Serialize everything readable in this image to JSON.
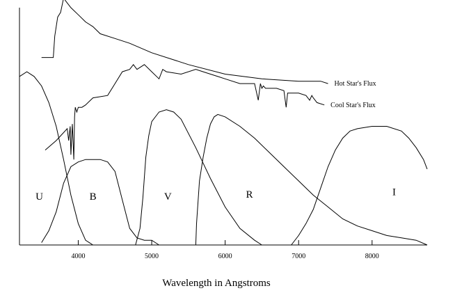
{
  "chart_data": {
    "type": "line",
    "title": "",
    "xlabel": "Wavelength in Angstroms",
    "ylabel": "",
    "xlim": [
      3200,
      8750
    ],
    "ylim": [
      0,
      1
    ],
    "grid": false,
    "x_ticks": [
      4000,
      5000,
      6000,
      7000,
      8000
    ],
    "series": [
      {
        "name": "Hot Star's Flux",
        "x": [
          3500,
          3660,
          3680,
          3720,
          3760,
          3800,
          3850,
          3900,
          4000,
          4100,
          4200,
          4300,
          4500,
          4700,
          5000,
          5500,
          6000,
          6500,
          7000,
          7300,
          7400
        ],
        "y": [
          0.79,
          0.79,
          0.88,
          0.96,
          0.98,
          1.04,
          1.02,
          1.0,
          0.97,
          0.94,
          0.92,
          0.89,
          0.87,
          0.85,
          0.81,
          0.76,
          0.72,
          0.7,
          0.69,
          0.69,
          0.68
        ]
      },
      {
        "name": "Cool Star's Flux",
        "x": [
          3550,
          3700,
          3850,
          3870,
          3890,
          3900,
          3920,
          3940,
          3950,
          3960,
          3980,
          4000,
          4050,
          4100,
          4200,
          4400,
          4500,
          4600,
          4700,
          4750,
          4800,
          4900,
          5000,
          5100,
          5150,
          5200,
          5400,
          5600,
          5700,
          5800,
          5900,
          6000,
          6200,
          6400,
          6450,
          6480,
          6500,
          6520,
          6550,
          6700,
          6800,
          6830,
          6850,
          7000,
          7100,
          7150,
          7180,
          7200,
          7250,
          7350
        ],
        "y": [
          0.4,
          0.44,
          0.49,
          0.44,
          0.5,
          0.38,
          0.51,
          0.36,
          0.54,
          0.58,
          0.56,
          0.58,
          0.58,
          0.59,
          0.62,
          0.63,
          0.68,
          0.73,
          0.74,
          0.76,
          0.74,
          0.76,
          0.73,
          0.7,
          0.74,
          0.73,
          0.72,
          0.74,
          0.73,
          0.72,
          0.71,
          0.7,
          0.68,
          0.68,
          0.61,
          0.68,
          0.66,
          0.67,
          0.66,
          0.66,
          0.65,
          0.58,
          0.64,
          0.64,
          0.63,
          0.61,
          0.63,
          0.62,
          0.6,
          0.59
        ]
      },
      {
        "name": "U",
        "x": [
          3200,
          3300,
          3400,
          3500,
          3600,
          3700,
          3800,
          3900,
          4000,
          4100,
          4200
        ],
        "y": [
          0.71,
          0.73,
          0.71,
          0.67,
          0.6,
          0.5,
          0.36,
          0.21,
          0.09,
          0.02,
          0.0
        ]
      },
      {
        "name": "B",
        "x": [
          3500,
          3600,
          3700,
          3800,
          3900,
          4000,
          4100,
          4200,
          4300,
          4400,
          4500,
          4600,
          4700,
          4800,
          4900,
          5000,
          5100
        ],
        "y": [
          0.01,
          0.06,
          0.14,
          0.26,
          0.33,
          0.35,
          0.36,
          0.36,
          0.36,
          0.35,
          0.31,
          0.19,
          0.07,
          0.03,
          0.02,
          0.02,
          0.0
        ]
      },
      {
        "name": "V",
        "x": [
          4780,
          4840,
          4880,
          4920,
          4960,
          5000,
          5100,
          5200,
          5300,
          5400,
          5600,
          5800,
          6000,
          6200,
          6400,
          6500
        ],
        "y": [
          0.0,
          0.07,
          0.2,
          0.37,
          0.46,
          0.52,
          0.56,
          0.57,
          0.56,
          0.53,
          0.41,
          0.28,
          0.16,
          0.07,
          0.02,
          0.0
        ]
      },
      {
        "name": "R",
        "x": [
          5600,
          5610,
          5650,
          5700,
          5750,
          5800,
          5850,
          5900,
          6000,
          6200,
          6400,
          6600,
          6800,
          7000,
          7200,
          7400,
          7600,
          7800,
          8000,
          8200,
          8400,
          8600,
          8750
        ],
        "y": [
          0.0,
          0.09,
          0.27,
          0.37,
          0.45,
          0.51,
          0.54,
          0.55,
          0.54,
          0.5,
          0.45,
          0.39,
          0.33,
          0.27,
          0.21,
          0.16,
          0.11,
          0.08,
          0.06,
          0.04,
          0.03,
          0.02,
          0.0
        ]
      },
      {
        "name": "I",
        "x": [
          6900,
          7000,
          7100,
          7200,
          7300,
          7400,
          7500,
          7600,
          7700,
          7800,
          8000,
          8200,
          8400,
          8500,
          8600,
          8700,
          8750
        ],
        "y": [
          0.0,
          0.04,
          0.09,
          0.15,
          0.24,
          0.33,
          0.4,
          0.45,
          0.48,
          0.49,
          0.5,
          0.5,
          0.48,
          0.45,
          0.41,
          0.36,
          0.32
        ]
      }
    ],
    "annotations": [
      {
        "text": "Hot Star's Flux",
        "series": "Hot Star's Flux"
      },
      {
        "text": "Cool Star's Flux",
        "series": "Cool Star's Flux"
      },
      {
        "text": "U",
        "x": 3470,
        "y": 0.19
      },
      {
        "text": "B",
        "x": 4200,
        "y": 0.19
      },
      {
        "text": "V",
        "x": 5220,
        "y": 0.19
      },
      {
        "text": "R",
        "x": 6330,
        "y": 0.2
      },
      {
        "text": "I",
        "x": 8300,
        "y": 0.21
      }
    ]
  }
}
